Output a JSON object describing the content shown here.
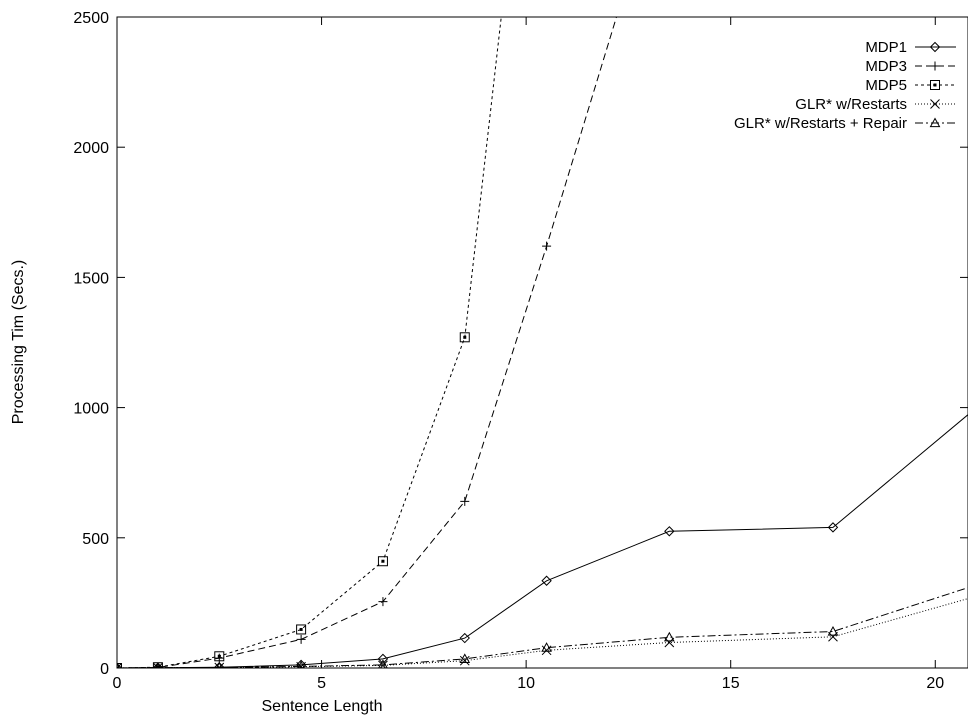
{
  "chart_data": {
    "type": "line",
    "title": "",
    "xlabel": "Sentence Length",
    "ylabel": "Processing Tim (Secs.)",
    "xlim": [
      0,
      20.8
    ],
    "ylim": [
      0,
      2500
    ],
    "xticks": [
      0,
      5,
      10,
      15,
      20
    ],
    "xtick_labels": [
      "0",
      "5",
      "10",
      "15",
      "20"
    ],
    "yticks": [
      0,
      500,
      1000,
      1500,
      2000,
      2500
    ],
    "ytick_labels": [
      "0",
      "500",
      "1000",
      "1500",
      "2000",
      "2500"
    ],
    "grid": false,
    "legend_position": "top-right",
    "series": [
      {
        "name": "MDP1",
        "marker": "diamond",
        "dash": "solid",
        "x": [
          0,
          1,
          2.5,
          4.5,
          6.5,
          8.5,
          10.5,
          13.5,
          17.5,
          22
        ],
        "y": [
          0,
          1,
          3,
          12,
          35,
          115,
          335,
          525,
          540,
          1130
        ]
      },
      {
        "name": "MDP3",
        "marker": "plus",
        "dash": "dashed",
        "x": [
          0,
          1,
          2.5,
          4.5,
          6.5,
          8.5,
          10.5,
          12.5
        ],
        "y": [
          0,
          2,
          38,
          110,
          255,
          640,
          1620,
          2650
        ]
      },
      {
        "name": "MDP5",
        "marker": "square",
        "dash": "short-dashed",
        "x": [
          0,
          1,
          2.5,
          4.5,
          6.5,
          8.5,
          9.5
        ],
        "y": [
          0,
          3,
          45,
          148,
          410,
          1270,
          2650
        ]
      },
      {
        "name": "GLR* w/Restarts",
        "marker": "cross",
        "dash": "dotted",
        "x": [
          0,
          1,
          2.5,
          4.5,
          6.5,
          8.5,
          10.5,
          13.5,
          17.5,
          22
        ],
        "y": [
          0,
          1,
          2,
          5,
          10,
          28,
          68,
          98,
          120,
          320
        ]
      },
      {
        "name": "GLR* w/Restarts + Repair",
        "marker": "triangle",
        "dash": "dash-dot",
        "x": [
          0,
          1,
          2.5,
          4.5,
          6.5,
          8.5,
          10.5,
          13.5,
          17.5,
          22
        ],
        "y": [
          0,
          1,
          2,
          6,
          12,
          35,
          78,
          118,
          140,
          370
        ]
      }
    ]
  }
}
